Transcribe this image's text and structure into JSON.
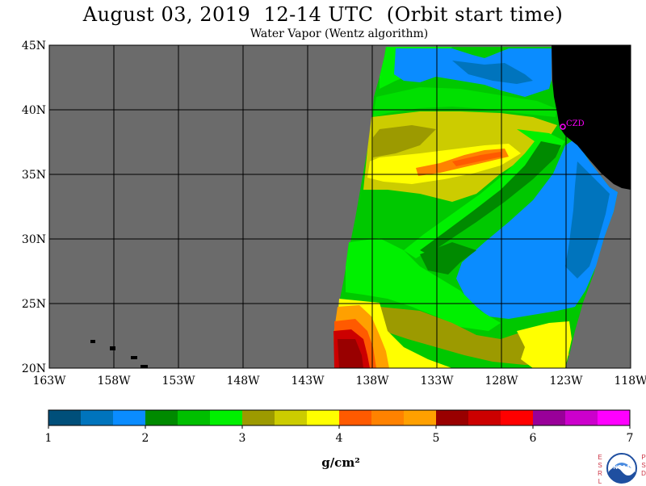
{
  "title": "August 03, 2019  12-14 UTC  (Orbit start time)",
  "subtitle": "Water Vapor (Wentz algorithm)",
  "map": {
    "lat_labels": [
      "45N",
      "40N",
      "35N",
      "30N",
      "25N",
      "20N"
    ],
    "lon_labels": [
      "163W",
      "158W",
      "153W",
      "148W",
      "143W",
      "138W",
      "133W",
      "128W",
      "123W",
      "118W"
    ],
    "station_label": "CZD",
    "colors": {
      "missing": "#6b6b6b",
      "land": "#000000",
      "grid": "#000000",
      "station": "#ff00ff"
    }
  },
  "colorbar": {
    "tick_labels": [
      "1",
      "2",
      "3",
      "4",
      "5",
      "6",
      "7"
    ],
    "unit": "g/cm²",
    "colors": [
      "#004f7a",
      "#0074bd",
      "#0a8cff",
      "#008a00",
      "#00bf00",
      "#00f000",
      "#9c9a00",
      "#cccc00",
      "#ffff00",
      "#ff5a00",
      "#ff8200",
      "#ffa000",
      "#990000",
      "#cc0000",
      "#ff0000",
      "#990099",
      "#cc00cc",
      "#ff00ff"
    ]
  },
  "footer": {
    "left_letters": [
      "E",
      "S",
      "R",
      "L"
    ],
    "right_letters": [
      "P",
      "S",
      "D"
    ],
    "logo_text": "NOAA"
  }
}
